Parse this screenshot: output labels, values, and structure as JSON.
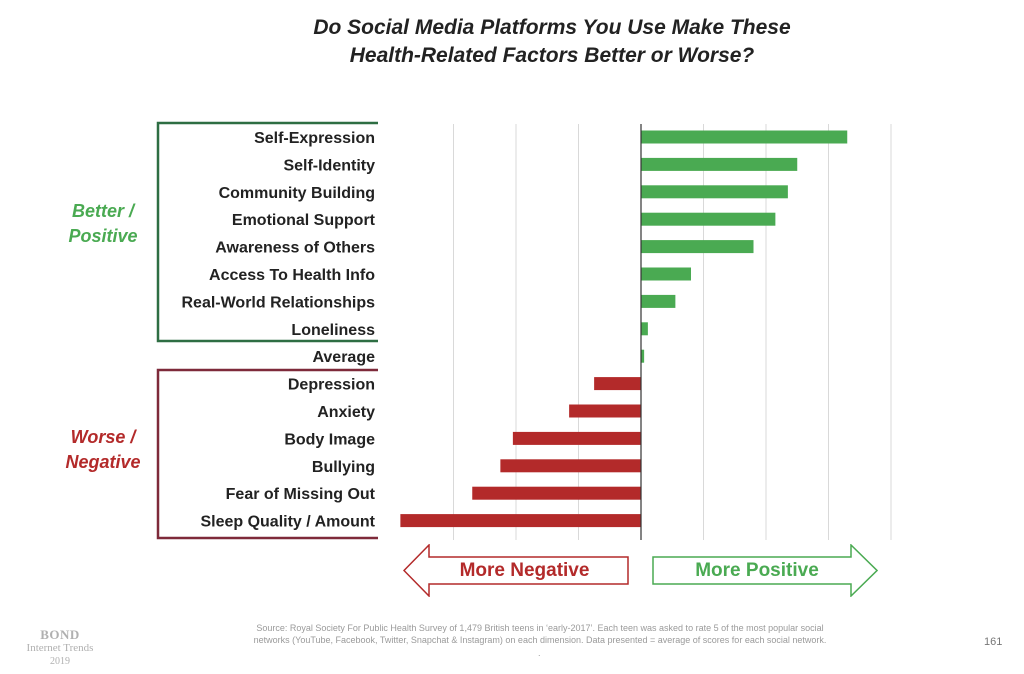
{
  "chart_data": {
    "type": "bar",
    "orientation": "horizontal",
    "title": "Do Social Media Platforms You Use Make These Health-Related Factors Better or Worse?",
    "title_lines": [
      "Do Social Media Platforms You Use Make These",
      "Health-Related Factors Better or Worse?"
    ],
    "categories": [
      "Self-Expression",
      "Self-Identity",
      "Community Building",
      "Emotional Support",
      "Awareness of Others",
      "Access To Health Info",
      "Real-World Relationships",
      "Loneliness",
      "Average",
      "Depression",
      "Anxiety",
      "Body Image",
      "Bullying",
      "Fear of Missing Out",
      "Sleep Quality / Amount"
    ],
    "values": [
      0.33,
      0.25,
      0.235,
      0.215,
      0.18,
      0.08,
      0.055,
      0.011,
      0.005,
      -0.075,
      -0.115,
      -0.205,
      -0.225,
      -0.27,
      -0.385
    ],
    "xlim": [
      -0.4,
      0.4
    ],
    "grid": true,
    "gridlines": [
      -0.3,
      -0.2,
      -0.1,
      0.1,
      0.2,
      0.3,
      0.4
    ],
    "groups": [
      {
        "label_lines": [
          "Better /",
          "Positive"
        ],
        "color": "#4aaa52"
      },
      {
        "label_lines": [
          "Worse /",
          "Negative"
        ],
        "color": "#b32a2a"
      }
    ],
    "arrows": {
      "negative": "More Negative",
      "positive": "More Positive"
    },
    "colors": {
      "positive": "#4aaa52",
      "negative": "#b32a2a",
      "positive_bracket": "#2e6e43",
      "negative_bracket": "#7e2a3a"
    }
  },
  "footer": {
    "source_line1": "Source: Royal Society For Public Health Survey of 1,479 British teens in ‘early-2017’. Each teen was asked to rate 5 of the most popular social",
    "source_line2": "networks (YouTube, Facebook, Twitter, Snapchat & Instagram) on each dimension. Data presented = average of scores for each social network.",
    "source_dot": ".",
    "brand_line1": "BOND",
    "brand_line2": "Internet Trends",
    "brand_line3": "2019",
    "page_number": "161"
  }
}
